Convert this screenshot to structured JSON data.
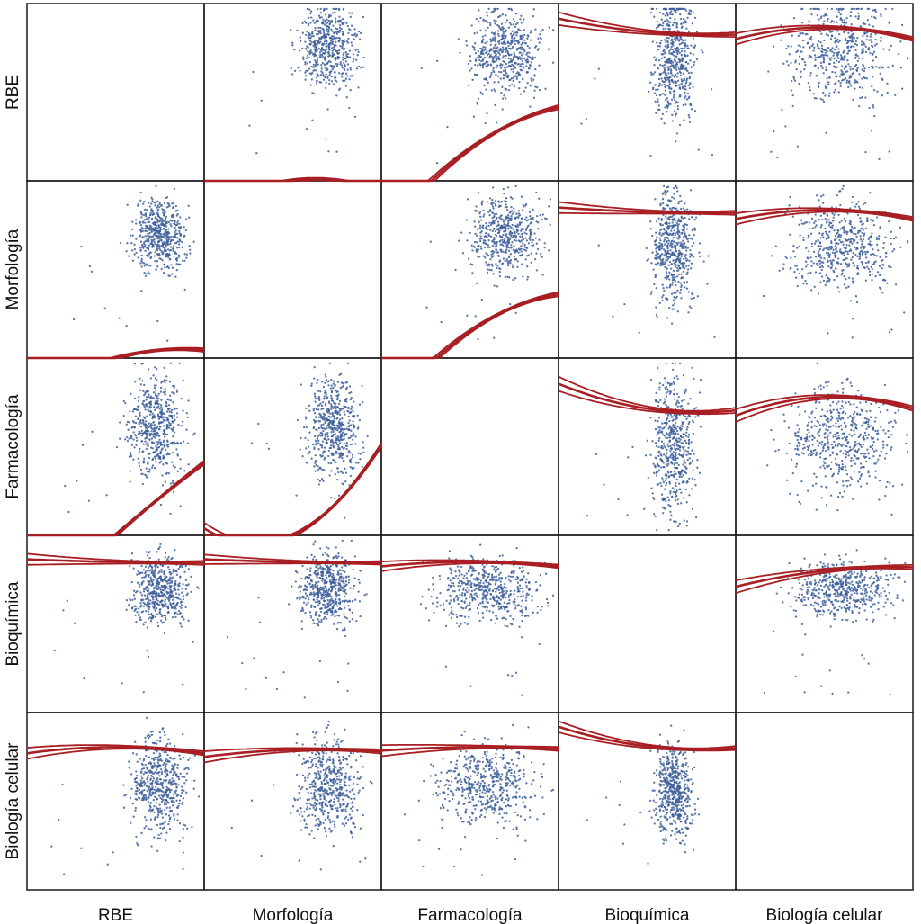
{
  "chart_data": {
    "type": "scatter",
    "subtype": "scatterplot-matrix",
    "variables": [
      "RBE",
      "Morfología",
      "Farmacología",
      "Bioquímica",
      "Biología celular"
    ],
    "x_axis_labels": [
      "RBE",
      "Morfología",
      "Farmacología",
      "Bioquímica",
      "Biología celular"
    ],
    "y_axis_labels": [
      "RBE",
      "Morfología",
      "Farmacología",
      "Bioquímica",
      "Biología celular"
    ],
    "diagonal": "empty",
    "axis_ticks": "none",
    "grid": false,
    "point_color": "#3d5f9a",
    "fit_line_color": "#a81e22",
    "fit": "quadratic with confidence band (three curves)",
    "panels": [
      {
        "row": "RBE",
        "col": "Morfología",
        "cluster": {
          "cx": 0.7,
          "cy": 0.75,
          "sx": 0.08,
          "sy": 0.11
        },
        "fit": [
          -1.0,
          0.15,
          -0.27
        ],
        "spread": 0.035
      },
      {
        "row": "RBE",
        "col": "Farmacología",
        "cluster": {
          "cx": 0.7,
          "cy": 0.73,
          "sx": 0.1,
          "sy": 0.12
        },
        "fit": [
          -0.64,
          0.72,
          -0.25
        ],
        "spread": 0.035
      },
      {
        "row": "RBE",
        "col": "Bioquímica",
        "cluster": {
          "cx": 0.65,
          "cy": 0.72,
          "sx": 0.06,
          "sy": 0.18
        },
        "fit": [
          0.68,
          -0.09,
          0.06
        ],
        "spread": 0.04
      },
      {
        "row": "RBE",
        "col": "Biología celular",
        "cluster": {
          "cx": 0.6,
          "cy": 0.74,
          "sx": 0.15,
          "sy": 0.14
        },
        "fit": [
          0.73,
          0.0,
          -0.13
        ],
        "spread": 0.035
      },
      {
        "row": "Morfología",
        "col": "RBE",
        "cluster": {
          "cx": 0.75,
          "cy": 0.7,
          "sx": 0.07,
          "sy": 0.1
        },
        "fit": [
          -1.0,
          0.27,
          -0.18
        ],
        "spread": 0.03
      },
      {
        "row": "Morfología",
        "col": "Farmacología",
        "cluster": {
          "cx": 0.7,
          "cy": 0.7,
          "sx": 0.1,
          "sy": 0.11
        },
        "fit": [
          -0.7,
          0.69,
          -0.27
        ],
        "spread": 0.035
      },
      {
        "row": "Morfología",
        "col": "Bioquímica",
        "cluster": {
          "cx": 0.65,
          "cy": 0.63,
          "sx": 0.06,
          "sy": 0.16
        },
        "fit": [
          0.65,
          -0.03,
          0.02
        ],
        "spread": 0.035
      },
      {
        "row": "Morfología",
        "col": "Biología celular",
        "cluster": {
          "cx": 0.6,
          "cy": 0.65,
          "sx": 0.15,
          "sy": 0.13
        },
        "fit": [
          0.67,
          0.0,
          -0.1
        ],
        "spread": 0.035
      },
      {
        "row": "Farmacología",
        "col": "RBE",
        "cluster": {
          "cx": 0.73,
          "cy": 0.62,
          "sx": 0.08,
          "sy": 0.14
        },
        "fit": [
          -1.0,
          0.88,
          -0.06
        ],
        "spread": 0.035
      },
      {
        "row": "Farmacología",
        "col": "Morfología",
        "cluster": {
          "cx": 0.73,
          "cy": 0.62,
          "sx": 0.07,
          "sy": 0.14
        },
        "fit": [
          -1.0,
          0.47,
          0.55
        ],
        "spread": 0.035
      },
      {
        "row": "Farmacología",
        "col": "Bioquímica",
        "cluster": {
          "cx": 0.65,
          "cy": 0.52,
          "sx": 0.06,
          "sy": 0.2
        },
        "fit": [
          0.43,
          -0.15,
          0.13
        ],
        "spread": 0.045
      },
      {
        "row": "Farmacología",
        "col": "Biología celular",
        "cluster": {
          "cx": 0.6,
          "cy": 0.55,
          "sx": 0.15,
          "sy": 0.15
        },
        "fit": [
          0.56,
          0.04,
          -0.17
        ],
        "spread": 0.04
      },
      {
        "row": "Bioquímica",
        "col": "RBE",
        "cluster": {
          "cx": 0.75,
          "cy": 0.7,
          "sx": 0.08,
          "sy": 0.1
        },
        "fit": [
          0.7,
          -0.02,
          0.01
        ],
        "spread": 0.035
      },
      {
        "row": "Bioquímica",
        "col": "Morfología",
        "cluster": {
          "cx": 0.7,
          "cy": 0.7,
          "sx": 0.08,
          "sy": 0.1
        },
        "fit": [
          0.7,
          -0.02,
          0.01
        ],
        "spread": 0.03
      },
      {
        "row": "Bioquímica",
        "col": "Farmacología",
        "cluster": {
          "cx": 0.6,
          "cy": 0.7,
          "sx": 0.14,
          "sy": 0.09
        },
        "fit": [
          0.7,
          0.0,
          -0.05
        ],
        "spread": 0.03
      },
      {
        "row": "Bioquímica",
        "col": "Biología celular",
        "cluster": {
          "cx": 0.6,
          "cy": 0.7,
          "sx": 0.14,
          "sy": 0.08
        },
        "fit": [
          0.6,
          0.11,
          -0.07
        ],
        "spread": 0.04
      },
      {
        "row": "Biología celular",
        "col": "RBE",
        "cluster": {
          "cx": 0.75,
          "cy": 0.6,
          "sx": 0.08,
          "sy": 0.14
        },
        "fit": [
          0.61,
          0.0,
          -0.07
        ],
        "spread": 0.035
      },
      {
        "row": "Biología celular",
        "col": "Morfología",
        "cluster": {
          "cx": 0.7,
          "cy": 0.6,
          "sx": 0.09,
          "sy": 0.14
        },
        "fit": [
          0.58,
          0.03,
          -0.05
        ],
        "spread": 0.035
      },
      {
        "row": "Biología celular",
        "col": "Farmacología",
        "cluster": {
          "cx": 0.6,
          "cy": 0.6,
          "sx": 0.14,
          "sy": 0.11
        },
        "fit": [
          0.61,
          0.01,
          -0.03
        ],
        "spread": 0.035
      },
      {
        "row": "Biología celular",
        "col": "Bioquímica",
        "cluster": {
          "cx": 0.65,
          "cy": 0.57,
          "sx": 0.05,
          "sy": 0.13
        },
        "fit": [
          0.62,
          -0.12,
          0.1
        ],
        "spread": 0.035
      }
    ]
  }
}
